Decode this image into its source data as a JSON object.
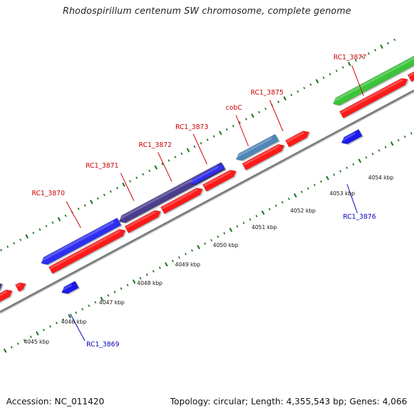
{
  "title": "Rhodospirillum centenum SW chromosome, complete genome",
  "footer": {
    "accession": "Accession: NC_011420",
    "summary": "Topology: circular; Length: 4,355,543 bp; Genes: 4,066"
  },
  "colors": {
    "forward_gene_red": "#ff1a1a",
    "reverse_gene_blue": "#1a1aee",
    "blue_gene": "#2f2ff2",
    "slate_gene": "#4a3d8c",
    "steel_gene": "#4f86b8",
    "green_gene": "#3ac43a",
    "backbone": "#888888",
    "tick_green": "#1f7a1f",
    "label_red": "#cc0000",
    "label_blue": "#0000bb"
  },
  "kbp_ticks": [
    {
      "label": "4045 kbp"
    },
    {
      "label": "4046 kbp"
    },
    {
      "label": "4047 kbp"
    },
    {
      "label": "4048 kbp"
    },
    {
      "label": "4049 kbp"
    },
    {
      "label": "4050 kbp"
    },
    {
      "label": "4051 kbp"
    },
    {
      "label": "4052 kbp"
    },
    {
      "label": "4053 kbp"
    },
    {
      "label": "4054 kbp"
    }
  ],
  "gene_labels": [
    {
      "label": "RC1_3870",
      "strand": "forward"
    },
    {
      "label": "RC1_3871",
      "strand": "forward"
    },
    {
      "label": "RC1_3872",
      "strand": "forward"
    },
    {
      "label": "RC1_3873",
      "strand": "forward"
    },
    {
      "label": "cobC",
      "strand": "forward"
    },
    {
      "label": "RC1_3875",
      "strand": "forward"
    },
    {
      "label": "RC1_3877",
      "strand": "forward"
    },
    {
      "label": "RC1_3869",
      "strand": "reverse"
    },
    {
      "label": "RC1_3876",
      "strand": "reverse"
    }
  ]
}
